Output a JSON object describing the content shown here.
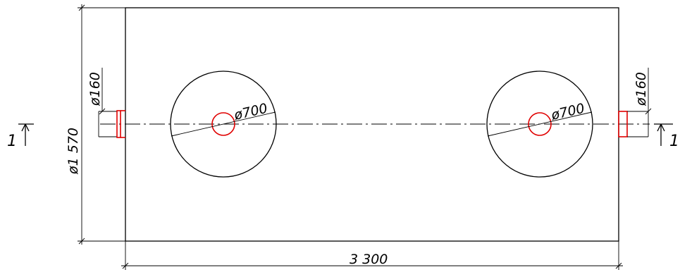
{
  "drawing": {
    "overall_length": "3 300",
    "overall_diameter": "ø1 570",
    "inlet_pipe": "ø160",
    "outlet_pipe": "ø160",
    "left_manhole": "ø700",
    "right_manhole": "ø700",
    "section_left": "1",
    "section_right": "1"
  },
  "colors": {
    "outline": "#000000",
    "highlight": "#e00000"
  }
}
